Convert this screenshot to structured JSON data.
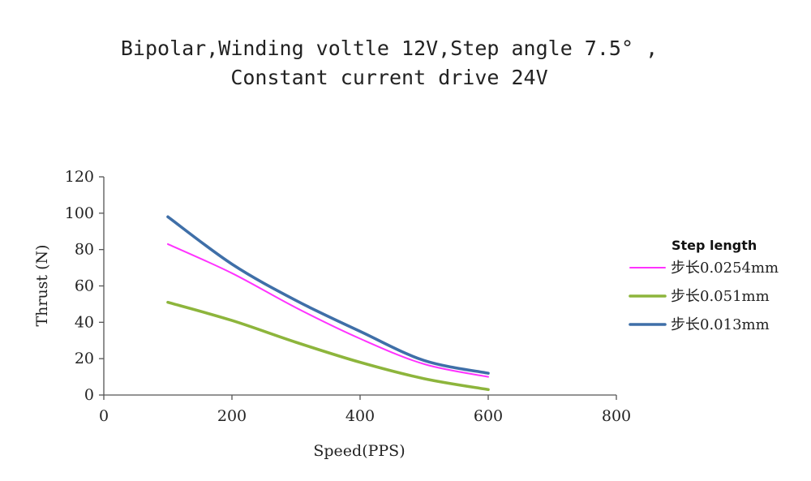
{
  "chart_data": {
    "type": "line",
    "title_lines": [
      "Bipolar,Winding voltle 12V,Step angle 7.5° ,",
      "Constant current drive 24V"
    ],
    "xlabel": "Speed(PPS)",
    "ylabel": "Thrust (N)",
    "xlim": [
      0,
      800
    ],
    "ylim": [
      0,
      120
    ],
    "xticks": [
      0,
      200,
      400,
      600,
      800
    ],
    "yticks": [
      0,
      20,
      40,
      60,
      80,
      100,
      120
    ],
    "grid": false,
    "legend": {
      "title": "Step length",
      "position": "right"
    },
    "series": [
      {
        "name": "步长0.0254mm",
        "color": "#ff33ff",
        "x": [
          100,
          200,
          300,
          400,
          500,
          600
        ],
        "y": [
          83,
          67,
          48,
          31,
          17,
          10
        ]
      },
      {
        "name": "步长0.051mm",
        "color": "#8db53c",
        "x": [
          100,
          200,
          300,
          400,
          500,
          600
        ],
        "y": [
          51,
          41,
          29,
          18,
          9,
          3
        ]
      },
      {
        "name": "步长0.013mm",
        "color": "#3f6fa8",
        "x": [
          100,
          200,
          300,
          400,
          500,
          600
        ],
        "y": [
          98,
          72,
          52,
          35,
          19,
          12
        ]
      }
    ]
  }
}
